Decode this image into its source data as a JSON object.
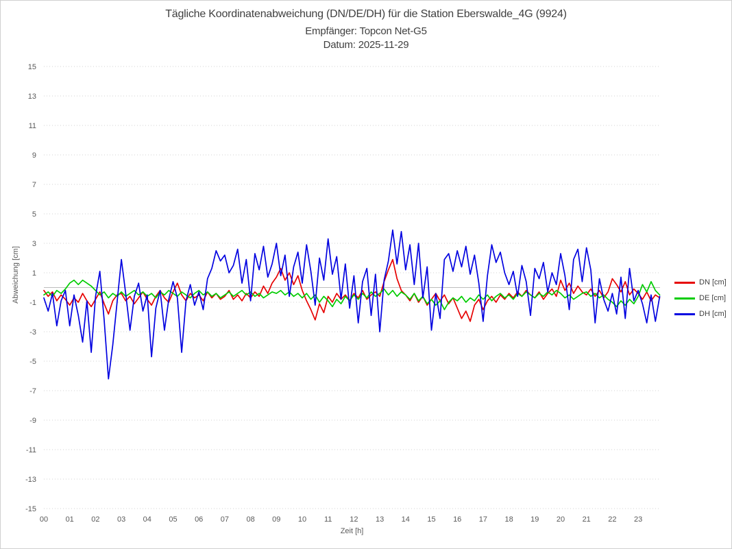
{
  "header": {
    "title_line1": "Tägliche Koordinatenabweichung (DN/DE/DH) für die Station Eberswalde_4G (9924)",
    "title_line2": "Empfänger: Topcon Net-G5",
    "title_line3": "Datum: 2025-11-29"
  },
  "colors": {
    "grid": "#d2d2d2",
    "zero_line": "#bdbdbd",
    "tick_text": "#595959",
    "title_text": "#3f3f3f",
    "page_border": "#cfcfcf"
  },
  "chart_data": {
    "type": "line",
    "title": "Tägliche Koordinatenabweichung (DN/DE/DH) für die Station Eberswalde_4G (9924)",
    "subtitle": "Empfänger: Topcon Net-G5",
    "date_line": "Datum: 2025-11-29",
    "xlabel": "Zeit [h]",
    "ylabel": "Abweichung [cm]",
    "ylim": [
      -15,
      15
    ],
    "y_tick_step": 2,
    "grid": "dotted horizontal lines, solid line at 0",
    "legend_position": "right, vertically centered",
    "y_ticks": [
      "15",
      "13",
      "11",
      "9",
      "7",
      "5",
      "3",
      "1",
      "-1",
      "-3",
      "-5",
      "-7",
      "-9",
      "-11",
      "-13",
      "-15"
    ],
    "x_ticks": [
      "00",
      "01",
      "02",
      "03",
      "04",
      "05",
      "06",
      "07",
      "08",
      "09",
      "10",
      "11",
      "12",
      "13",
      "14",
      "15",
      "16",
      "17",
      "18",
      "19",
      "20",
      "21",
      "22",
      "23"
    ],
    "x_start_hour": 0,
    "x_step_minutes": 10,
    "series": [
      {
        "name": "DN [cm]",
        "color": "#e60000",
        "values": [
          -0.2,
          -0.6,
          -0.3,
          -0.9,
          -0.5,
          -0.8,
          -1.2,
          -0.7,
          -1.0,
          -0.4,
          -0.9,
          -1.3,
          -0.8,
          -0.3,
          -1.1,
          -1.8,
          -0.9,
          -0.5,
          -0.4,
          -0.9,
          -0.6,
          -1.1,
          -0.7,
          -0.3,
          -0.8,
          -1.2,
          -0.6,
          -0.2,
          -0.7,
          -1.0,
          -0.3,
          0.3,
          -0.5,
          -0.9,
          -0.4,
          -0.7,
          -0.5,
          -0.9,
          -0.3,
          -0.7,
          -0.4,
          -0.8,
          -0.6,
          -0.2,
          -0.8,
          -0.5,
          -0.9,
          -0.4,
          -0.7,
          -0.3,
          -0.6,
          0.1,
          -0.4,
          0.3,
          0.7,
          1.3,
          0.5,
          1.0,
          0.2,
          0.8,
          -0.2,
          -0.9,
          -1.5,
          -2.2,
          -1.1,
          -1.7,
          -0.6,
          -1.0,
          -0.4,
          -0.8,
          -0.5,
          -0.9,
          -0.4,
          -0.7,
          -0.2,
          -0.8,
          -0.5,
          -0.3,
          -0.6,
          0.4,
          1.2,
          1.9,
          0.6,
          -0.2,
          -0.5,
          -0.9,
          -0.4,
          -1.0,
          -0.6,
          -1.2,
          -0.8,
          -0.4,
          -0.9,
          -0.5,
          -1.1,
          -0.7,
          -1.4,
          -2.1,
          -1.6,
          -2.3,
          -1.2,
          -0.8,
          -1.5,
          -0.9,
          -0.6,
          -1.0,
          -0.5,
          -0.8,
          -0.4,
          -0.7,
          -0.3,
          -0.6,
          -0.2,
          -0.5,
          -0.7,
          -0.3,
          -0.8,
          -0.4,
          -0.1,
          -0.6,
          0.5,
          -0.2,
          0.3,
          -0.4,
          0.1,
          -0.3,
          -0.5,
          -0.1,
          -0.6,
          -0.2,
          -0.7,
          -0.3,
          0.6,
          0.2,
          -0.3,
          0.4,
          -0.5,
          -0.1,
          -0.4,
          -0.8,
          -0.3,
          -0.9,
          -0.5,
          -0.7
        ]
      },
      {
        "name": "DE [cm]",
        "color": "#00cc00",
        "values": [
          -0.5,
          -0.3,
          -0.6,
          -0.2,
          -0.4,
          -0.1,
          0.3,
          0.5,
          0.2,
          0.5,
          0.3,
          0.1,
          -0.2,
          -0.5,
          -0.3,
          -0.7,
          -0.4,
          -0.6,
          -0.3,
          -0.6,
          -0.4,
          -0.2,
          -0.5,
          -0.3,
          -0.6,
          -0.4,
          -0.7,
          -0.3,
          -0.5,
          -0.2,
          -0.4,
          -0.6,
          -0.3,
          -0.5,
          -0.7,
          -0.4,
          -0.2,
          -0.5,
          -0.3,
          -0.6,
          -0.4,
          -0.7,
          -0.5,
          -0.3,
          -0.6,
          -0.4,
          -0.2,
          -0.5,
          -0.3,
          -0.6,
          -0.4,
          -0.7,
          -0.5,
          -0.3,
          -0.4,
          -0.2,
          -0.5,
          -0.3,
          -0.6,
          -0.4,
          -0.7,
          -0.4,
          -0.8,
          -0.5,
          -1.0,
          -0.6,
          -0.9,
          -1.3,
          -0.8,
          -1.1,
          -0.6,
          -0.9,
          -0.5,
          -0.8,
          -0.4,
          -0.7,
          -0.3,
          -0.6,
          -0.4,
          -0.1,
          -0.5,
          -0.2,
          -0.6,
          -0.3,
          -0.5,
          -0.8,
          -0.4,
          -0.9,
          -0.6,
          -1.1,
          -0.8,
          -1.2,
          -0.9,
          -1.5,
          -1.0,
          -0.7,
          -0.9,
          -0.6,
          -1.0,
          -0.7,
          -0.9,
          -0.5,
          -0.8,
          -0.5,
          -0.9,
          -0.6,
          -0.4,
          -0.7,
          -0.5,
          -0.8,
          -0.4,
          -0.6,
          -0.3,
          -0.5,
          -0.7,
          -0.4,
          -0.6,
          -0.3,
          -0.5,
          -0.2,
          -0.4,
          -0.7,
          -0.5,
          -0.8,
          -0.6,
          -0.4,
          -0.3,
          -0.6,
          -0.4,
          -0.7,
          -0.5,
          -0.8,
          -1.0,
          -1.3,
          -0.9,
          -1.2,
          -0.8,
          -1.1,
          -0.6,
          0.2,
          -0.3,
          0.4,
          -0.2,
          -0.5
        ]
      },
      {
        "name": "DH [cm]",
        "color": "#0000e0",
        "values": [
          -0.7,
          -1.6,
          -0.4,
          -2.6,
          -0.9,
          -0.2,
          -2.6,
          -0.5,
          -1.9,
          -3.7,
          -0.9,
          -4.4,
          -0.6,
          1.1,
          -2.2,
          -6.2,
          -3.9,
          -1.0,
          1.9,
          -0.4,
          -2.9,
          -0.6,
          0.3,
          -1.6,
          -0.5,
          -4.7,
          -1.4,
          -0.2,
          -2.9,
          -0.8,
          0.4,
          -0.7,
          -4.4,
          -0.9,
          0.2,
          -1.2,
          -0.3,
          -1.5,
          0.6,
          1.3,
          2.5,
          1.8,
          2.2,
          1.0,
          1.5,
          2.6,
          0.3,
          1.9,
          -0.9,
          2.3,
          1.2,
          2.8,
          0.7,
          1.6,
          3.0,
          0.8,
          2.2,
          -0.6,
          1.4,
          2.4,
          0.3,
          2.9,
          1.1,
          -1.2,
          2.0,
          0.5,
          3.3,
          0.9,
          2.1,
          -0.8,
          1.6,
          -1.4,
          0.8,
          -2.4,
          0.4,
          1.3,
          -1.9,
          0.9,
          -3.0,
          0.5,
          1.8,
          3.9,
          1.6,
          3.8,
          1.2,
          2.9,
          0.2,
          3.0,
          -0.7,
          1.4,
          -2.9,
          -0.4,
          -2.1,
          1.9,
          2.3,
          1.1,
          2.5,
          1.4,
          2.8,
          0.9,
          2.2,
          0.3,
          -2.3,
          0.8,
          2.9,
          1.7,
          2.4,
          1.0,
          0.2,
          1.1,
          -0.6,
          1.5,
          0.4,
          -1.9,
          1.3,
          0.6,
          1.7,
          -0.3,
          1.0,
          0.2,
          2.3,
          0.8,
          -1.5,
          1.9,
          2.6,
          0.4,
          2.7,
          1.2,
          -2.4,
          0.6,
          -0.8,
          -1.6,
          -0.4,
          -1.8,
          0.7,
          -2.1,
          1.3,
          -0.9,
          -0.2,
          -1.1,
          -2.4,
          -0.5,
          -2.3,
          -0.6
        ]
      }
    ]
  },
  "legend": {
    "items": [
      {
        "label": "DN [cm]",
        "color": "#e60000"
      },
      {
        "label": "DE [cm]",
        "color": "#00cc00"
      },
      {
        "label": "DH [cm]",
        "color": "#0000e0"
      }
    ]
  }
}
